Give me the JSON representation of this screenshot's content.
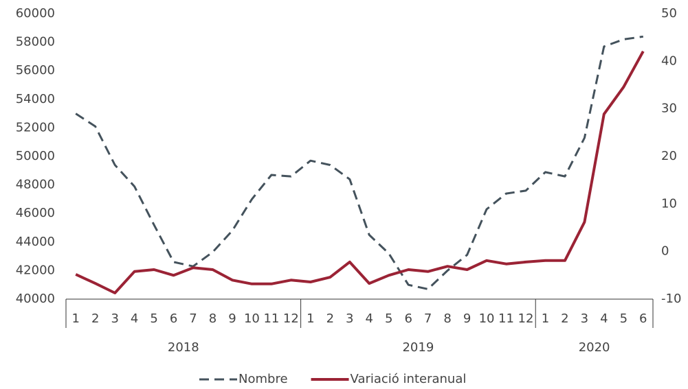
{
  "chart_data": {
    "type": "line",
    "categories": [
      "1",
      "2",
      "3",
      "4",
      "5",
      "6",
      "7",
      "8",
      "9",
      "10",
      "11",
      "12",
      "1",
      "2",
      "3",
      "4",
      "5",
      "6",
      "7",
      "8",
      "9",
      "10",
      "11",
      "12",
      "1",
      "2",
      "3",
      "4",
      "5",
      "6"
    ],
    "groups": [
      "2018",
      "2019",
      "2020"
    ],
    "series": [
      {
        "name": "Nombre",
        "color": "#44525c",
        "dash": true,
        "axis": "y",
        "values": [
          53000,
          52100,
          49400,
          47900,
          45200,
          42600,
          42300,
          43300,
          44800,
          47000,
          48700,
          48600,
          49700,
          49400,
          48400,
          44500,
          43200,
          41000,
          40700,
          42000,
          43100,
          46300,
          47400,
          47600,
          48900,
          48600,
          51300,
          57700,
          58200,
          58400
        ]
      },
      {
        "name": "Variació interanual",
        "color": "#9b2335",
        "dash": false,
        "axis": "y2",
        "values": [
          -4.8,
          -6.7,
          -8.7,
          -4.2,
          -3.8,
          -5.0,
          -3.4,
          -3.8,
          -6.0,
          -6.8,
          -6.8,
          -6.0,
          -6.4,
          -5.4,
          -2.2,
          -6.7,
          -5.0,
          -3.8,
          -4.2,
          -3.1,
          -3.8,
          -1.9,
          -2.6,
          -2.2,
          -1.9,
          -1.9,
          6.2,
          28.9,
          34.6,
          42.1
        ]
      }
    ],
    "ylim": [
      40000,
      60000
    ],
    "yticks": [
      40000,
      42000,
      44000,
      46000,
      48000,
      50000,
      52000,
      54000,
      56000,
      58000,
      60000
    ],
    "y2lim": [
      -10,
      50
    ],
    "y2ticks": [
      -10,
      0,
      10,
      20,
      30,
      40,
      50
    ],
    "grid": false,
    "legend": "bottom"
  }
}
